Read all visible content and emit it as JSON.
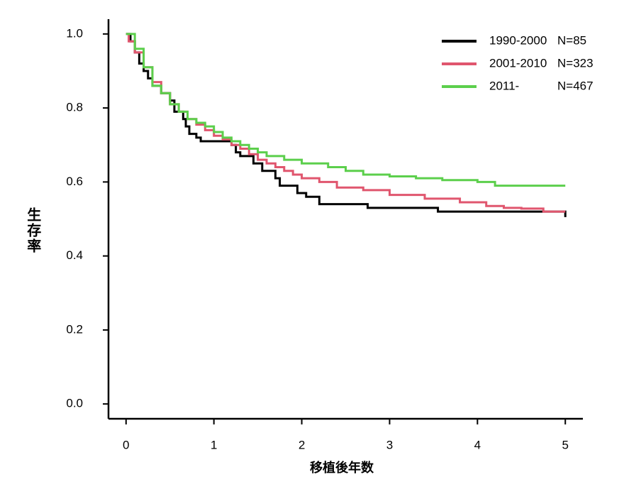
{
  "chart_data": {
    "type": "line",
    "step": true,
    "x_label": "移植後年数",
    "y_label": "生存率",
    "xlim": [
      -0.2,
      5.2
    ],
    "xticks": [
      0,
      1,
      2,
      3,
      4,
      5
    ],
    "ylim": [
      -0.04,
      1.04
    ],
    "yticks": [
      {
        "value": 0,
        "label": "0.0"
      },
      {
        "value": 0.2,
        "label": "0.2"
      },
      {
        "value": 0.4,
        "label": "0.4"
      },
      {
        "value": 0.6,
        "label": "0.6"
      },
      {
        "value": 0.8,
        "label": "0.8"
      },
      {
        "value": 1,
        "label": "1.0"
      }
    ],
    "legend": "top-right",
    "series": [
      {
        "name": "1990-2000",
        "n_label": "N=85",
        "color": "#000000",
        "x": [
          0,
          0.05,
          0.1,
          0.15,
          0.2,
          0.25,
          0.3,
          0.4,
          0.5,
          0.55,
          0.65,
          0.68,
          0.72,
          0.8,
          0.85,
          1.2,
          1.25,
          1.3,
          1.45,
          1.55,
          1.7,
          1.75,
          1.95,
          2.05,
          2.2,
          2.75,
          3.55,
          5.0
        ],
        "values": [
          1.0,
          0.98,
          0.95,
          0.92,
          0.9,
          0.88,
          0.86,
          0.84,
          0.82,
          0.79,
          0.77,
          0.75,
          0.73,
          0.72,
          0.71,
          0.7,
          0.68,
          0.67,
          0.65,
          0.63,
          0.61,
          0.59,
          0.57,
          0.56,
          0.54,
          0.53,
          0.52,
          0.505
        ]
      },
      {
        "name": "2001-2010",
        "n_label": "N=323",
        "color": "#e0566e",
        "x": [
          0,
          0.03,
          0.1,
          0.2,
          0.3,
          0.4,
          0.5,
          0.6,
          0.7,
          0.8,
          0.9,
          1.0,
          1.1,
          1.2,
          1.3,
          1.4,
          1.5,
          1.6,
          1.7,
          1.8,
          1.9,
          2.0,
          2.2,
          2.4,
          2.7,
          3.0,
          3.4,
          3.8,
          4.1,
          4.3,
          4.5,
          4.75,
          5.0
        ],
        "values": [
          1.0,
          0.98,
          0.95,
          0.91,
          0.87,
          0.84,
          0.81,
          0.79,
          0.77,
          0.755,
          0.74,
          0.725,
          0.715,
          0.7,
          0.69,
          0.675,
          0.66,
          0.65,
          0.64,
          0.63,
          0.62,
          0.61,
          0.6,
          0.585,
          0.578,
          0.565,
          0.555,
          0.545,
          0.535,
          0.53,
          0.528,
          0.52,
          0.52
        ]
      },
      {
        "name": "2011-",
        "n_label": "N=467",
        "color": "#5ccf4c",
        "x": [
          0,
          0.1,
          0.2,
          0.3,
          0.4,
          0.5,
          0.6,
          0.7,
          0.8,
          0.9,
          1.0,
          1.1,
          1.2,
          1.3,
          1.4,
          1.5,
          1.6,
          1.8,
          2.0,
          2.3,
          2.5,
          2.7,
          3.0,
          3.3,
          3.6,
          4.0,
          4.2,
          5.0
        ],
        "values": [
          1.0,
          0.96,
          0.91,
          0.86,
          0.84,
          0.81,
          0.79,
          0.77,
          0.76,
          0.75,
          0.735,
          0.72,
          0.71,
          0.7,
          0.69,
          0.68,
          0.67,
          0.66,
          0.65,
          0.64,
          0.63,
          0.62,
          0.615,
          0.61,
          0.605,
          0.6,
          0.59,
          0.59
        ]
      }
    ]
  }
}
